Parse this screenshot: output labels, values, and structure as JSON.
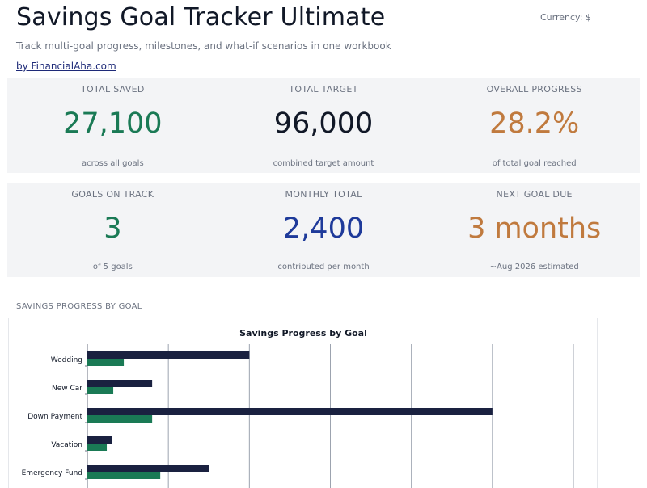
{
  "header": {
    "title": "Savings Goal Tracker Ultimate",
    "currency": "Currency: $",
    "subtitle": "Track multi-goal progress, milestones, and what-if scenarios in one workbook",
    "byline": "by FinancialAha.com"
  },
  "kpis_row1": [
    {
      "label": "TOTAL SAVED",
      "value": "27,100",
      "note": "across all goals",
      "color": "#1a7a55"
    },
    {
      "label": "TOTAL TARGET",
      "value": "96,000",
      "note": "combined target amount",
      "color": "#111827"
    },
    {
      "label": "OVERALL PROGRESS",
      "value": "28.2%",
      "note": "of total goal reached",
      "color": "#c07a3e"
    }
  ],
  "kpis_row2": [
    {
      "label": "GOALS ON TRACK",
      "value": "3",
      "note": "of 5 goals",
      "color": "#1a7a55"
    },
    {
      "label": "MONTHLY TOTAL",
      "value": "2,400",
      "note": "contributed per month",
      "color": "#1e3a9a"
    },
    {
      "label": "NEXT GOAL DUE",
      "value": "3 months",
      "note": "~Aug 2026 estimated",
      "color": "#c07a3e"
    }
  ],
  "section": {
    "label": "SAVINGS PROGRESS BY GOAL"
  },
  "chart_data": {
    "type": "bar",
    "orientation": "horizontal",
    "title": "Savings Progress by Goal",
    "categories": [
      "Wedding",
      "New Car",
      "Down Payment",
      "Vacation",
      "Emergency Fund"
    ],
    "series": [
      {
        "values": [
          20000,
          8000,
          50000,
          3000,
          15000
        ],
        "color": "#1a2140"
      },
      {
        "values": [
          4500,
          3200,
          8000,
          2400,
          9000
        ],
        "color": "#1a7a55"
      }
    ],
    "xlim": [
      0,
      60000
    ],
    "grid": true
  }
}
